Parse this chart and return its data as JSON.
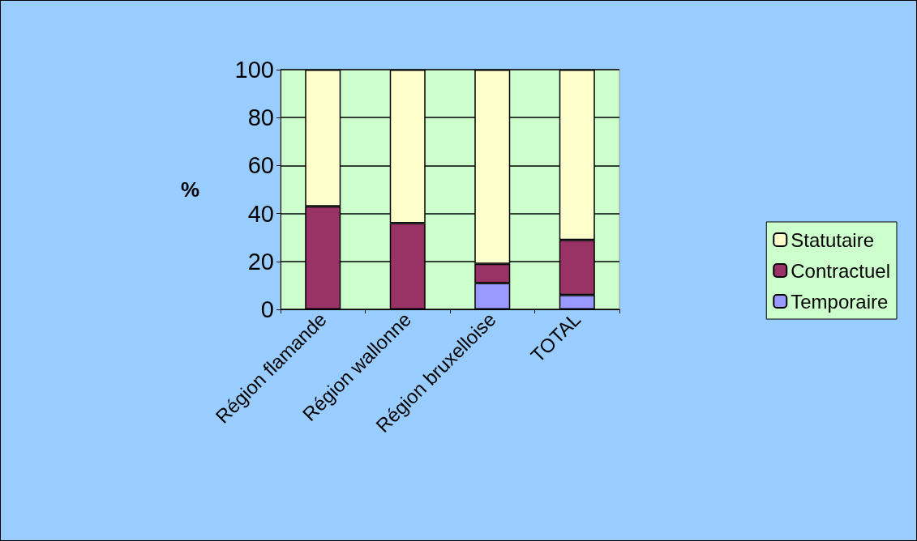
{
  "chart_data": {
    "type": "bar",
    "ylabel": "%",
    "categories": [
      "Région flamande",
      "Région wallonne",
      "Région bruxelloise",
      "TOTAL"
    ],
    "stacked": true,
    "series": [
      {
        "name": "Temporaire",
        "color": "#9999ff",
        "values": [
          0,
          0,
          11,
          6
        ]
      },
      {
        "name": "Contractuel",
        "color": "#993366",
        "values": [
          43,
          36,
          8,
          23
        ]
      },
      {
        "name": "Statutaire",
        "color": "#ffffcc",
        "values": [
          57,
          64,
          81,
          71
        ]
      }
    ],
    "ylim": [
      0,
      100
    ],
    "yticks": [
      0,
      20,
      40,
      60,
      80,
      100
    ],
    "grid": "y",
    "legend": "right"
  }
}
